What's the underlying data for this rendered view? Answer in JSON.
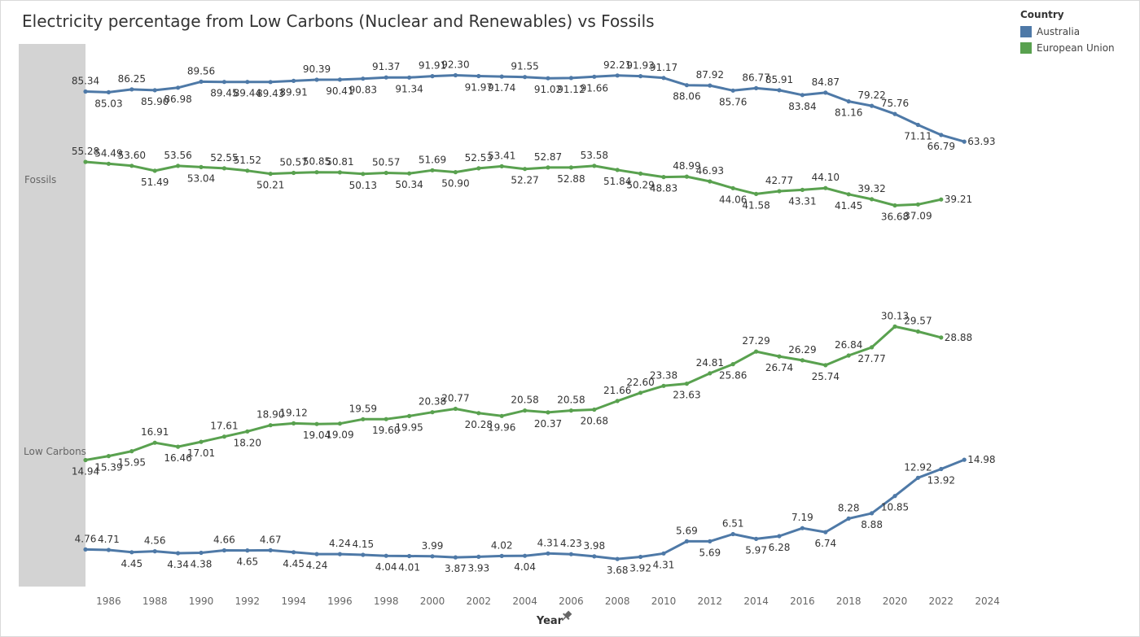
{
  "title": "Electricity percentage from Low Carbons (Nuclear and Renewables) vs Fossils",
  "legend": {
    "title": "Country",
    "items": [
      {
        "name": "Australia",
        "color": "#4e79a7"
      },
      {
        "name": "European Union",
        "color": "#59a14f"
      }
    ]
  },
  "chart_data": {
    "type": "line",
    "xlabel": "Year",
    "x_ticks": [
      "1986",
      "1988",
      "1990",
      "1992",
      "1994",
      "1996",
      "1998",
      "2000",
      "2002",
      "2004",
      "2006",
      "2008",
      "2010",
      "2012",
      "2014",
      "2016",
      "2018",
      "2020",
      "2022",
      "2024"
    ],
    "x_range": [
      1984.6,
      2024.6
    ],
    "panes": [
      {
        "name": "Fossils",
        "series": [
          {
            "name": "Australia",
            "color": "#4e79a7",
            "x": [
              1985,
              1986,
              1987,
              1988,
              1989,
              1990,
              1991,
              1992,
              1993,
              1994,
              1995,
              1996,
              1997,
              1998,
              1999,
              2000,
              2001,
              2002,
              2003,
              2004,
              2005,
              2006,
              2007,
              2008,
              2009,
              2010,
              2011,
              2012,
              2013,
              2014,
              2015,
              2016,
              2017,
              2018,
              2019,
              2020,
              2021,
              2022,
              2023
            ],
            "values": [
              85.34,
              85.03,
              86.25,
              85.9,
              86.98,
              89.56,
              89.45,
              89.44,
              89.43,
              89.91,
              90.39,
              90.41,
              90.83,
              91.37,
              91.34,
              91.91,
              92.3,
              91.97,
              91.74,
              91.55,
              91.02,
              91.12,
              91.66,
              92.21,
              91.93,
              91.17,
              88.06,
              87.92,
              85.76,
              86.77,
              85.91,
              83.84,
              84.87,
              81.16,
              79.22,
              75.76,
              71.11,
              66.79,
              63.93
            ]
          },
          {
            "name": "European Union",
            "color": "#59a14f",
            "x": [
              1985,
              1986,
              1987,
              1988,
              1989,
              1990,
              1991,
              1992,
              1993,
              1994,
              1995,
              1996,
              1997,
              1998,
              1999,
              2000,
              2001,
              2002,
              2003,
              2004,
              2005,
              2006,
              2007,
              2008,
              2009,
              2010,
              2011,
              2012,
              2013,
              2014,
              2015,
              2016,
              2017,
              2018,
              2019,
              2020,
              2021,
              2022
            ],
            "values": [
              55.28,
              54.49,
              53.6,
              51.49,
              53.56,
              53.04,
              52.55,
              51.52,
              50.21,
              50.57,
              50.85,
              50.81,
              50.13,
              50.57,
              50.34,
              51.69,
              50.9,
              52.53,
              53.41,
              52.27,
              52.87,
              52.88,
              53.58,
              51.84,
              50.29,
              48.83,
              48.99,
              46.93,
              44.06,
              41.58,
              42.77,
              43.31,
              44.1,
              41.45,
              39.32,
              36.68,
              37.09,
              39.21
            ]
          }
        ]
      },
      {
        "name": "Low Carbons",
        "series": [
          {
            "name": "European Union",
            "color": "#59a14f",
            "x": [
              1985,
              1986,
              1987,
              1988,
              1989,
              1990,
              1991,
              1992,
              1993,
              1994,
              1995,
              1996,
              1997,
              1998,
              1999,
              2000,
              2001,
              2002,
              2003,
              2004,
              2005,
              2006,
              2007,
              2008,
              2009,
              2010,
              2011,
              2012,
              2013,
              2014,
              2015,
              2016,
              2017,
              2018,
              2019,
              2020,
              2021,
              2022
            ],
            "values": [
              14.94,
              15.39,
              15.95,
              16.91,
              16.46,
              17.01,
              17.61,
              18.2,
              18.9,
              19.12,
              19.04,
              19.09,
              19.59,
              19.6,
              19.95,
              20.38,
              20.77,
              20.28,
              19.96,
              20.58,
              20.37,
              20.58,
              20.68,
              21.66,
              22.6,
              23.38,
              23.63,
              24.81,
              25.86,
              27.29,
              26.74,
              26.29,
              25.74,
              26.84,
              27.77,
              30.13,
              29.57,
              28.88
            ]
          },
          {
            "name": "Australia",
            "color": "#4e79a7",
            "x": [
              1985,
              1986,
              1987,
              1988,
              1989,
              1990,
              1991,
              1992,
              1993,
              1994,
              1995,
              1996,
              1997,
              1998,
              1999,
              2000,
              2001,
              2002,
              2003,
              2004,
              2005,
              2006,
              2007,
              2008,
              2009,
              2010,
              2011,
              2012,
              2013,
              2014,
              2015,
              2016,
              2017,
              2018,
              2019,
              2020,
              2021,
              2022,
              2023
            ],
            "values": [
              4.76,
              4.71,
              4.45,
              4.56,
              4.34,
              4.38,
              4.66,
              4.65,
              4.67,
              4.45,
              4.24,
              4.24,
              4.15,
              4.04,
              4.01,
              3.99,
              3.87,
              3.93,
              4.02,
              4.04,
              4.31,
              4.23,
              3.98,
              3.68,
              3.92,
              4.31,
              5.69,
              5.69,
              6.51,
              5.97,
              6.28,
              7.19,
              6.74,
              8.28,
              8.88,
              10.85,
              12.92,
              13.92,
              14.98
            ]
          }
        ]
      }
    ]
  }
}
